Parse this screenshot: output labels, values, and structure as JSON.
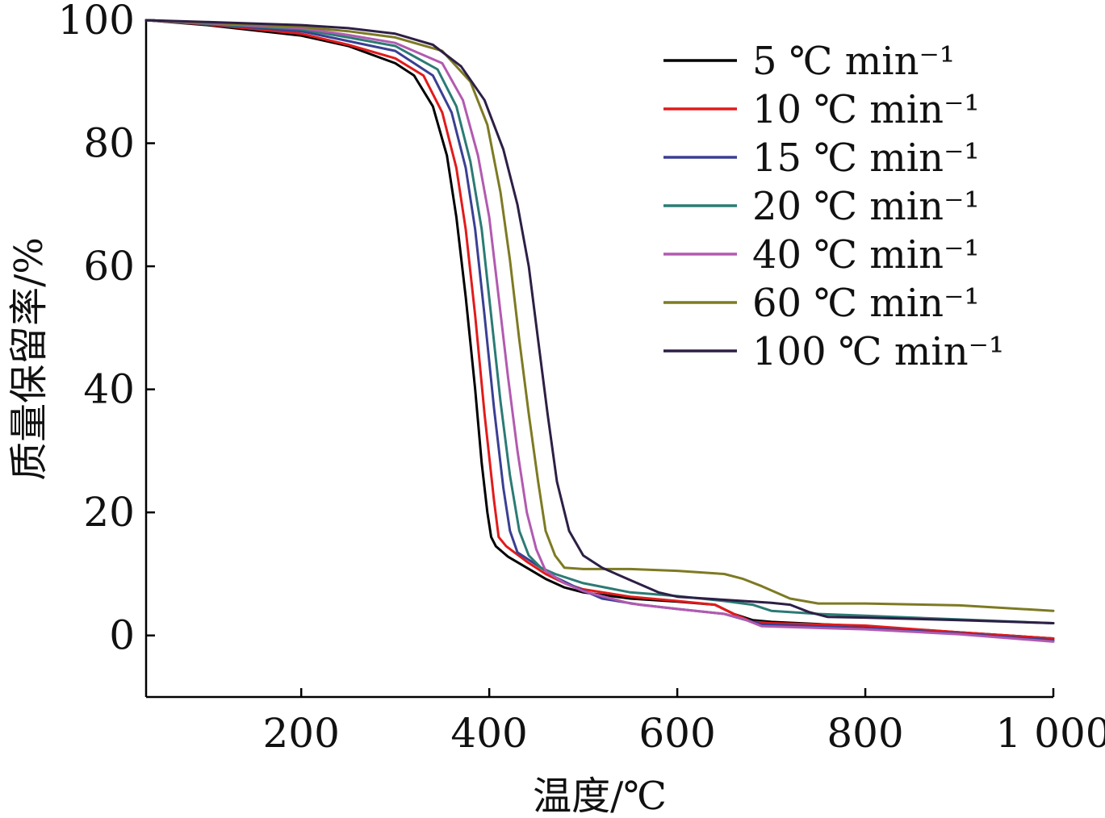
{
  "chart_data": {
    "type": "line",
    "xlabel": "温度/℃",
    "ylabel": "质量保留率/%",
    "xlim": [
      35,
      1000
    ],
    "ylim": [
      -10,
      100
    ],
    "x_ticks": [
      200,
      400,
      600,
      800,
      1000
    ],
    "x_tick_labels": [
      "200",
      "400",
      "600",
      "800",
      "1 000"
    ],
    "y_ticks": [
      0,
      20,
      40,
      60,
      80,
      100
    ],
    "y_tick_labels": [
      "0",
      "20",
      "40",
      "60",
      "80",
      "100"
    ],
    "grid": false,
    "legend_position": "top-right",
    "series": [
      {
        "name": "5 ℃ min⁻¹",
        "color": "#000000",
        "points": [
          [
            35,
            100
          ],
          [
            100,
            99.2
          ],
          [
            200,
            97.5
          ],
          [
            250,
            95.8
          ],
          [
            300,
            93
          ],
          [
            320,
            91
          ],
          [
            340,
            86
          ],
          [
            355,
            78
          ],
          [
            365,
            68
          ],
          [
            375,
            55
          ],
          [
            385,
            40
          ],
          [
            392,
            28
          ],
          [
            398,
            20
          ],
          [
            402,
            16
          ],
          [
            407,
            14.5
          ],
          [
            420,
            12.8
          ],
          [
            440,
            11
          ],
          [
            460,
            9.2
          ],
          [
            480,
            7.8
          ],
          [
            500,
            7
          ],
          [
            550,
            6
          ],
          [
            600,
            5.5
          ],
          [
            640,
            5
          ],
          [
            660,
            3.5
          ],
          [
            680,
            2.5
          ],
          [
            700,
            2.2
          ],
          [
            800,
            1.5
          ],
          [
            900,
            0.5
          ],
          [
            1000,
            -0.5
          ]
        ]
      },
      {
        "name": "10 ℃ min⁻¹",
        "color": "#e21b1b",
        "points": [
          [
            35,
            100
          ],
          [
            100,
            99.3
          ],
          [
            200,
            97.8
          ],
          [
            250,
            96
          ],
          [
            300,
            93.8
          ],
          [
            330,
            91
          ],
          [
            350,
            85
          ],
          [
            365,
            76
          ],
          [
            375,
            66
          ],
          [
            385,
            52
          ],
          [
            395,
            36
          ],
          [
            405,
            22
          ],
          [
            410,
            16
          ],
          [
            418,
            14.5
          ],
          [
            440,
            12
          ],
          [
            460,
            10
          ],
          [
            480,
            8.5
          ],
          [
            500,
            7.5
          ],
          [
            550,
            6.3
          ],
          [
            600,
            5.6
          ],
          [
            640,
            5
          ],
          [
            660,
            3.5
          ],
          [
            680,
            2.2
          ],
          [
            700,
            2
          ],
          [
            800,
            1.6
          ],
          [
            900,
            0.5
          ],
          [
            1000,
            -0.5
          ]
        ]
      },
      {
        "name": "15 ℃ min⁻¹",
        "color": "#3a3f93",
        "points": [
          [
            35,
            100
          ],
          [
            100,
            99.4
          ],
          [
            200,
            98.2
          ],
          [
            250,
            96.6
          ],
          [
            300,
            95
          ],
          [
            340,
            91
          ],
          [
            360,
            85
          ],
          [
            375,
            76
          ],
          [
            385,
            66
          ],
          [
            395,
            52
          ],
          [
            405,
            37
          ],
          [
            415,
            24
          ],
          [
            422,
            17
          ],
          [
            430,
            13.5
          ],
          [
            450,
            11.5
          ],
          [
            470,
            9.5
          ],
          [
            490,
            8
          ],
          [
            520,
            6
          ],
          [
            560,
            5
          ],
          [
            600,
            4.3
          ],
          [
            650,
            3.5
          ],
          [
            690,
            1.8
          ],
          [
            800,
            1.2
          ],
          [
            900,
            0.3
          ],
          [
            1000,
            -0.8
          ]
        ]
      },
      {
        "name": "20 ℃ min⁻¹",
        "color": "#2b7b74",
        "points": [
          [
            35,
            100
          ],
          [
            100,
            99.4
          ],
          [
            200,
            98.5
          ],
          [
            250,
            97.2
          ],
          [
            300,
            95.8
          ],
          [
            345,
            92
          ],
          [
            365,
            86
          ],
          [
            380,
            77
          ],
          [
            392,
            66
          ],
          [
            402,
            52
          ],
          [
            412,
            38
          ],
          [
            422,
            26
          ],
          [
            432,
            17
          ],
          [
            442,
            13
          ],
          [
            455,
            11
          ],
          [
            470,
            10
          ],
          [
            500,
            8.5
          ],
          [
            550,
            7
          ],
          [
            600,
            6.4
          ],
          [
            650,
            5.6
          ],
          [
            680,
            5
          ],
          [
            700,
            4
          ],
          [
            750,
            3.5
          ],
          [
            800,
            3.2
          ],
          [
            900,
            2.6
          ],
          [
            1000,
            2
          ]
        ]
      },
      {
        "name": "40 ℃ min⁻¹",
        "color": "#b25ab0",
        "points": [
          [
            35,
            100
          ],
          [
            100,
            99.5
          ],
          [
            200,
            98.7
          ],
          [
            250,
            97.6
          ],
          [
            300,
            96.3
          ],
          [
            350,
            93
          ],
          [
            372,
            87
          ],
          [
            388,
            78
          ],
          [
            400,
            68
          ],
          [
            410,
            55
          ],
          [
            420,
            42
          ],
          [
            430,
            30
          ],
          [
            440,
            20
          ],
          [
            450,
            14
          ],
          [
            460,
            10.5
          ],
          [
            480,
            8.5
          ],
          [
            500,
            7.2
          ],
          [
            550,
            5.2
          ],
          [
            600,
            4.3
          ],
          [
            650,
            3.5
          ],
          [
            670,
            2.7
          ],
          [
            690,
            1.5
          ],
          [
            800,
            1
          ],
          [
            900,
            0.2
          ],
          [
            1000,
            -1
          ]
        ]
      },
      {
        "name": "60 ℃ min⁻¹",
        "color": "#7d7a23",
        "points": [
          [
            35,
            100
          ],
          [
            100,
            99.6
          ],
          [
            200,
            98.9
          ],
          [
            250,
            98.2
          ],
          [
            300,
            97.2
          ],
          [
            350,
            95
          ],
          [
            380,
            90
          ],
          [
            398,
            83
          ],
          [
            412,
            72
          ],
          [
            422,
            61
          ],
          [
            432,
            48
          ],
          [
            442,
            36
          ],
          [
            452,
            25
          ],
          [
            460,
            17
          ],
          [
            470,
            13
          ],
          [
            480,
            11
          ],
          [
            500,
            10.8
          ],
          [
            550,
            10.8
          ],
          [
            600,
            10.5
          ],
          [
            650,
            10
          ],
          [
            670,
            9.2
          ],
          [
            690,
            8
          ],
          [
            720,
            6
          ],
          [
            750,
            5.2
          ],
          [
            800,
            5.2
          ],
          [
            900,
            4.9
          ],
          [
            1000,
            4
          ]
        ]
      },
      {
        "name": "100 ℃ min⁻¹",
        "color": "#2d1f45",
        "points": [
          [
            35,
            100
          ],
          [
            100,
            99.7
          ],
          [
            200,
            99.2
          ],
          [
            250,
            98.7
          ],
          [
            300,
            97.8
          ],
          [
            340,
            96
          ],
          [
            370,
            92.5
          ],
          [
            395,
            87
          ],
          [
            415,
            79
          ],
          [
            430,
            70
          ],
          [
            442,
            60
          ],
          [
            452,
            48
          ],
          [
            462,
            36
          ],
          [
            472,
            25
          ],
          [
            485,
            17
          ],
          [
            500,
            13
          ],
          [
            520,
            11
          ],
          [
            550,
            9
          ],
          [
            580,
            7
          ],
          [
            600,
            6.3
          ],
          [
            650,
            5.8
          ],
          [
            700,
            5.3
          ],
          [
            720,
            5
          ],
          [
            740,
            3.8
          ],
          [
            760,
            3
          ],
          [
            800,
            2.9
          ],
          [
            900,
            2.5
          ],
          [
            1000,
            2
          ]
        ]
      }
    ]
  }
}
